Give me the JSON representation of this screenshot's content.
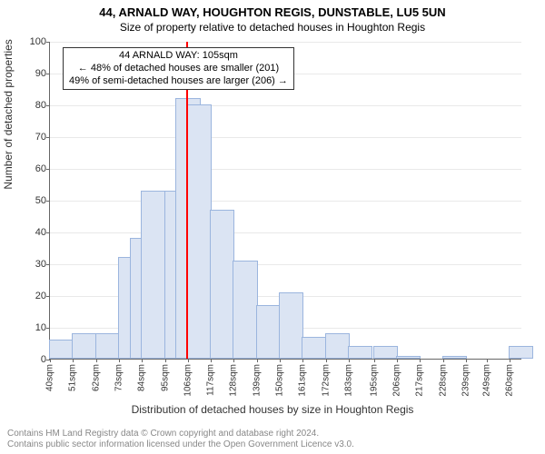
{
  "title_main": "44, ARNALD WAY, HOUGHTON REGIS, DUNSTABLE, LU5 5UN",
  "title_sub": "Size of property relative to detached houses in Houghton Regis",
  "ylabel": "Number of detached properties",
  "xlabel": "Distribution of detached houses by size in Houghton Regis",
  "footer_line1": "Contains HM Land Registry data © Crown copyright and database right 2024.",
  "footer_line2": "Contains public sector information licensed under the Open Government Licence v3.0.",
  "chart": {
    "type": "histogram",
    "ylim": [
      0,
      100
    ],
    "ytick_step": 10,
    "x_categories": [
      "40sqm",
      "51sqm",
      "62sqm",
      "73sqm",
      "84sqm",
      "95sqm",
      "106sqm",
      "117sqm",
      "128sqm",
      "139sqm",
      "150sqm",
      "161sqm",
      "172sqm",
      "183sqm",
      "195sqm",
      "206sqm",
      "217sqm",
      "228sqm",
      "239sqm",
      "249sqm",
      "260sqm"
    ],
    "bars": [
      {
        "x": 40,
        "h": 6
      },
      {
        "x": 51,
        "h": 8
      },
      {
        "x": 62,
        "h": 8
      },
      {
        "x": 73,
        "h": 32
      },
      {
        "x": 78.5,
        "h": 38
      },
      {
        "x": 84,
        "h": 53
      },
      {
        "x": 95,
        "h": 53
      },
      {
        "x": 100.5,
        "h": 82
      },
      {
        "x": 106,
        "h": 80
      },
      {
        "x": 117,
        "h": 47
      },
      {
        "x": 128,
        "h": 31
      },
      {
        "x": 139,
        "h": 17
      },
      {
        "x": 150,
        "h": 21
      },
      {
        "x": 161,
        "h": 7
      },
      {
        "x": 172,
        "h": 8
      },
      {
        "x": 183,
        "h": 4
      },
      {
        "x": 195,
        "h": 4
      },
      {
        "x": 206,
        "h": 1
      },
      {
        "x": 228,
        "h": 1
      },
      {
        "x": 260,
        "h": 4
      }
    ],
    "bar_color": "#dbe4f3",
    "bar_border": "#9bb5de",
    "grid_color": "#e9e9e9",
    "refline_x": 105,
    "refline_color": "#ff0000",
    "x_domain": [
      40,
      266
    ],
    "bar_width_units": 11
  },
  "annotation": {
    "line1": "44 ARNALD WAY: 105sqm",
    "line2": "← 48% of detached houses are smaller (201)",
    "line3": "49% of semi-detached houses are larger (206) →"
  }
}
